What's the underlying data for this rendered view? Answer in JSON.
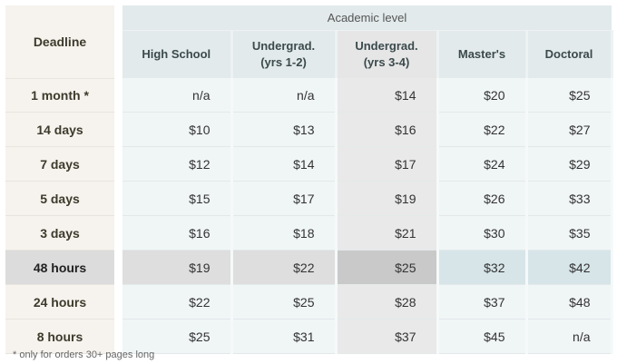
{
  "header": {
    "deadline": "Deadline",
    "academic_level": "Academic level",
    "levels": [
      "High School",
      "Undergrad.\n(yrs 1-2)",
      "Undergrad.\n(yrs 3-4)",
      "Master's",
      "Doctoral"
    ]
  },
  "rows": [
    {
      "deadline": "1 month *",
      "prices": [
        "n/a",
        "n/a",
        "$14",
        "$20",
        "$25"
      ]
    },
    {
      "deadline": "14 days",
      "prices": [
        "$10",
        "$13",
        "$16",
        "$22",
        "$27"
      ]
    },
    {
      "deadline": "7 days",
      "prices": [
        "$12",
        "$14",
        "$17",
        "$24",
        "$29"
      ]
    },
    {
      "deadline": "5 days",
      "prices": [
        "$15",
        "$17",
        "$19",
        "$26",
        "$33"
      ]
    },
    {
      "deadline": "3 days",
      "prices": [
        "$16",
        "$18",
        "$21",
        "$30",
        "$35"
      ]
    },
    {
      "deadline": "48 hours",
      "prices": [
        "$19",
        "$22",
        "$25",
        "$32",
        "$42"
      ]
    },
    {
      "deadline": "24 hours",
      "prices": [
        "$22",
        "$25",
        "$28",
        "$37",
        "$48"
      ]
    },
    {
      "deadline": "8 hours",
      "prices": [
        "$25",
        "$31",
        "$37",
        "$45",
        "n/a"
      ]
    }
  ],
  "highlighted_row": "48 hours",
  "highlighted_level": "Undergrad.\n(yrs 3-4)",
  "footnote": "* only for orders 30+ pages long"
}
